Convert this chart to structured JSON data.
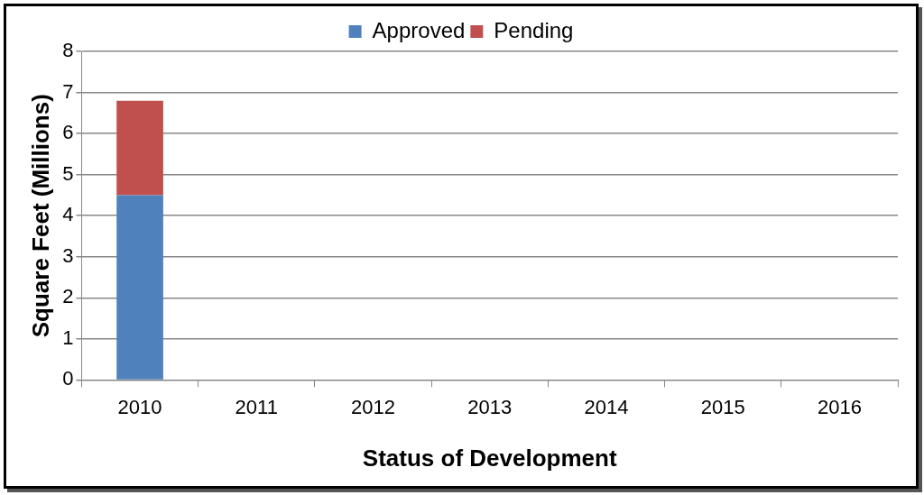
{
  "chart_data": {
    "type": "bar",
    "stacked": true,
    "categories": [
      "2010",
      "2011",
      "2012",
      "2013",
      "2014",
      "2015",
      "2016"
    ],
    "series": [
      {
        "name": "Approved",
        "color": "#4f81bd",
        "values": [
          4.5,
          null,
          null,
          null,
          null,
          null,
          null
        ]
      },
      {
        "name": "Pending",
        "color": "#c0504d",
        "values": [
          2.3,
          null,
          null,
          null,
          null,
          null,
          null
        ]
      }
    ],
    "xlabel": "Status of Development",
    "ylabel": "Square Feet (Millions)",
    "ylim": [
      0,
      8
    ],
    "yticks": [
      0,
      1,
      2,
      3,
      4,
      5,
      6,
      7,
      8
    ],
    "grid": "y",
    "legend": "top"
  }
}
